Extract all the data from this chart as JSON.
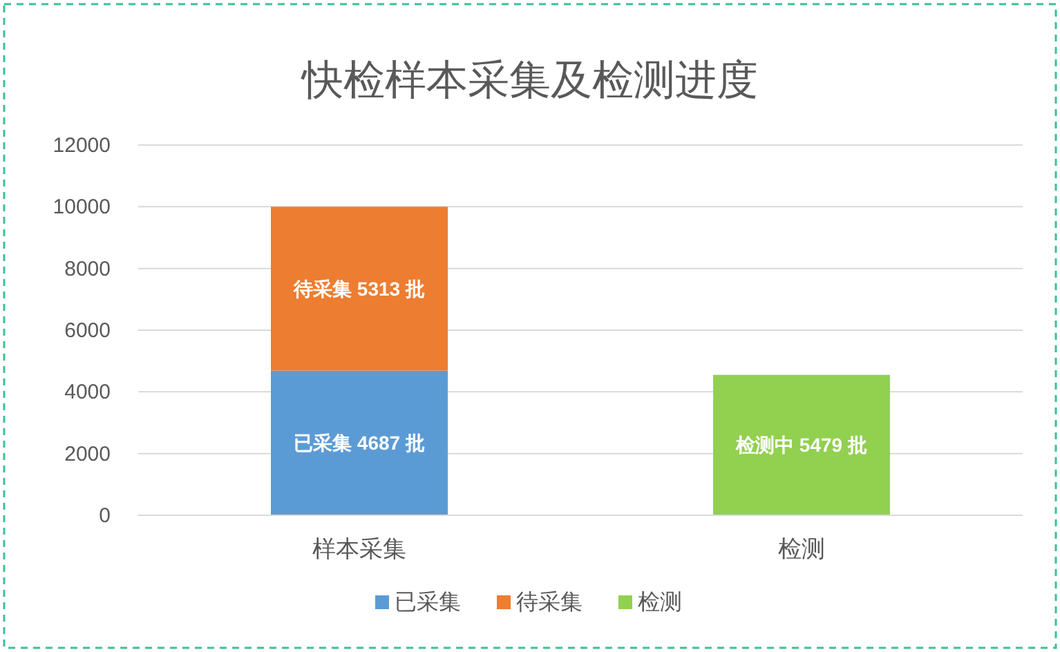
{
  "chart_data": {
    "type": "bar",
    "title": "快检样本采集及检测进度",
    "stacked": true,
    "categories": [
      "样本采集",
      "检测"
    ],
    "series": [
      {
        "name": "已采集",
        "color": "#5b9bd5",
        "values": [
          4687,
          null
        ],
        "value_labels": [
          "已采集 4687 批",
          null
        ]
      },
      {
        "name": "待采集",
        "color": "#ed7d31",
        "values": [
          5313,
          null
        ],
        "value_labels": [
          "待采集 5313 批",
          null
        ]
      },
      {
        "name": "检测",
        "color": "#92d050",
        "values": [
          null,
          4550
        ],
        "value_labels": [
          null,
          "检测中 5479 批"
        ]
      }
    ],
    "ylim": [
      0,
      12000
    ],
    "yticks": [
      0,
      2000,
      4000,
      6000,
      8000,
      10000,
      12000
    ],
    "grid": "y",
    "legend": "bottom"
  }
}
